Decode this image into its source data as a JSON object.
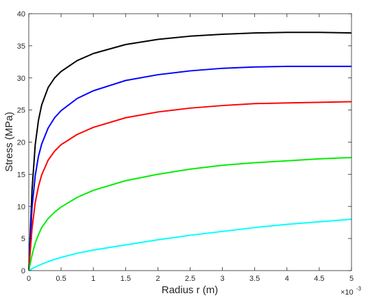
{
  "chart_data": {
    "type": "line",
    "title": "",
    "xlabel": "Radius r (m)",
    "ylabel": "Stress (MPa)",
    "x_exponent_base": "×10",
    "x_exponent_power": "-3",
    "xlim": [
      0,
      5
    ],
    "ylim": [
      0,
      40
    ],
    "x_tick_labels": [
      "0",
      "0.5",
      "1",
      "1.5",
      "2",
      "2.5",
      "3",
      "3.5",
      "4",
      "4.5",
      "5"
    ],
    "y_tick_labels": [
      "0",
      "5",
      "10",
      "15",
      "20",
      "25",
      "30",
      "35",
      "40"
    ],
    "grid": false,
    "legend": "none",
    "series": [
      {
        "color": "#000000",
        "x": [
          0,
          0.05,
          0.1,
          0.15,
          0.2,
          0.3,
          0.4,
          0.5,
          0.75,
          1,
          1.5,
          2,
          2.5,
          3,
          3.5,
          4,
          4.5,
          5
        ],
        "values": [
          0,
          12.5,
          19.6,
          23.4,
          25.8,
          28.5,
          30.0,
          31.0,
          32.7,
          33.8,
          35.2,
          36.0,
          36.5,
          36.8,
          37.0,
          37.1,
          37.1,
          37.0
        ]
      },
      {
        "color": "#0000ff",
        "x": [
          0,
          0.05,
          0.1,
          0.15,
          0.2,
          0.3,
          0.4,
          0.5,
          0.75,
          1,
          1.5,
          2,
          2.5,
          3,
          3.5,
          4,
          4.5,
          5
        ],
        "values": [
          0,
          9.8,
          14.8,
          17.8,
          19.7,
          22.2,
          23.8,
          24.9,
          26.8,
          28.0,
          29.6,
          30.5,
          31.1,
          31.5,
          31.7,
          31.8,
          31.8,
          31.8
        ]
      },
      {
        "color": "#ff0000",
        "x": [
          0,
          0.05,
          0.1,
          0.15,
          0.2,
          0.3,
          0.4,
          0.5,
          0.75,
          1,
          1.5,
          2,
          2.5,
          3,
          3.5,
          4,
          4.5,
          5
        ],
        "values": [
          0,
          6.5,
          10.6,
          13.1,
          14.9,
          17.2,
          18.6,
          19.6,
          21.2,
          22.3,
          23.8,
          24.7,
          25.3,
          25.7,
          26.0,
          26.1,
          26.2,
          26.3
        ]
      },
      {
        "color": "#00ee00",
        "x": [
          0,
          0.05,
          0.1,
          0.15,
          0.2,
          0.3,
          0.4,
          0.5,
          0.75,
          1,
          1.5,
          2,
          2.5,
          3,
          3.5,
          4,
          4.5,
          5
        ],
        "values": [
          0,
          2.4,
          4.3,
          5.6,
          6.7,
          8.1,
          9.1,
          9.9,
          11.4,
          12.5,
          14.0,
          15.0,
          15.8,
          16.4,
          16.8,
          17.1,
          17.4,
          17.6
        ]
      },
      {
        "color": "#00ffff",
        "x": [
          0,
          0.05,
          0.1,
          0.15,
          0.2,
          0.3,
          0.4,
          0.5,
          0.75,
          1,
          1.5,
          2,
          2.5,
          3,
          3.5,
          4,
          4.5,
          5
        ],
        "values": [
          0,
          0.3,
          0.55,
          0.8,
          1.0,
          1.4,
          1.75,
          2.05,
          2.7,
          3.2,
          4.0,
          4.8,
          5.5,
          6.1,
          6.7,
          7.2,
          7.6,
          8.0
        ]
      }
    ]
  }
}
